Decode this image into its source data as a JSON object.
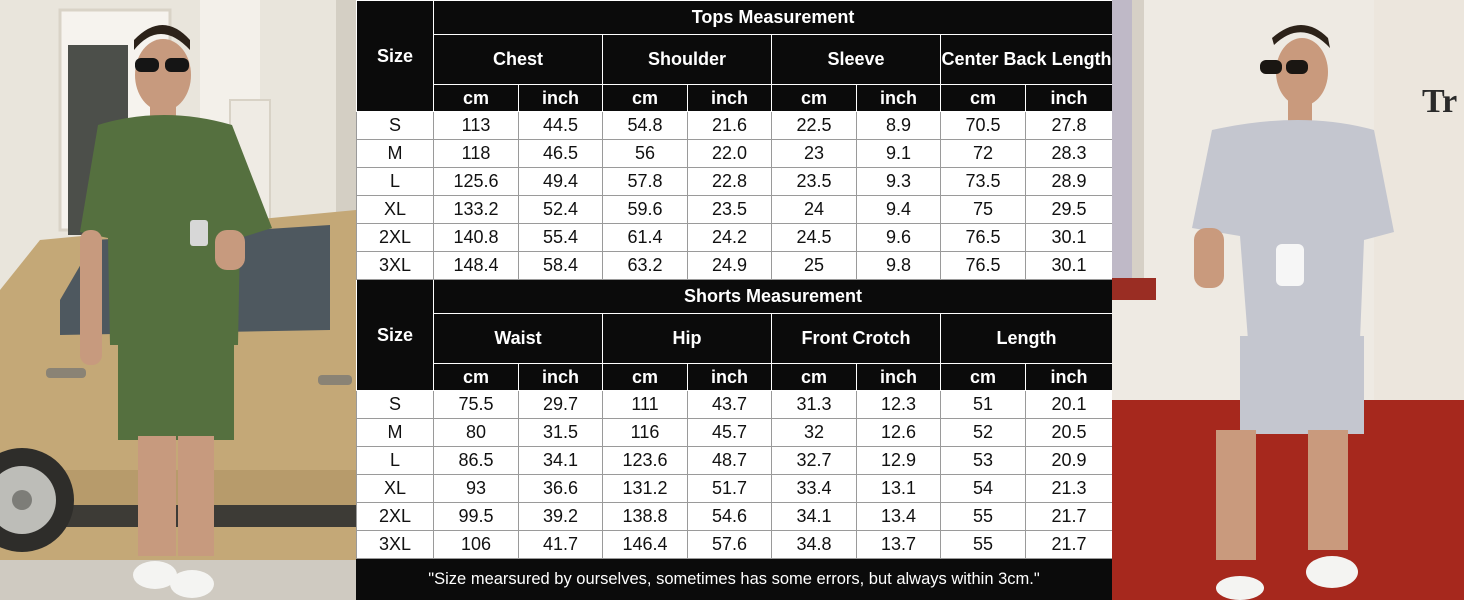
{
  "tops": {
    "title": "Tops Measurement",
    "size_label": "Size",
    "columns": [
      "Chest",
      "Shoulder",
      "Sleeve",
      "Center Back Length"
    ],
    "units": [
      "cm",
      "inch"
    ],
    "rows": [
      {
        "size": "S",
        "values": [
          "113",
          "44.5",
          "54.8",
          "21.6",
          "22.5",
          "8.9",
          "70.5",
          "27.8"
        ]
      },
      {
        "size": "M",
        "values": [
          "118",
          "46.5",
          "56",
          "22.0",
          "23",
          "9.1",
          "72",
          "28.3"
        ]
      },
      {
        "size": "L",
        "values": [
          "125.6",
          "49.4",
          "57.8",
          "22.8",
          "23.5",
          "9.3",
          "73.5",
          "28.9"
        ]
      },
      {
        "size": "XL",
        "values": [
          "133.2",
          "52.4",
          "59.6",
          "23.5",
          "24",
          "9.4",
          "75",
          "29.5"
        ]
      },
      {
        "size": "2XL",
        "values": [
          "140.8",
          "55.4",
          "61.4",
          "24.2",
          "24.5",
          "9.6",
          "76.5",
          "30.1"
        ]
      },
      {
        "size": "3XL",
        "values": [
          "148.4",
          "58.4",
          "63.2",
          "24.9",
          "25",
          "9.8",
          "76.5",
          "30.1"
        ]
      }
    ]
  },
  "shorts": {
    "title": "Shorts Measurement",
    "size_label": "Size",
    "columns": [
      "Waist",
      "Hip",
      "Front Crotch",
      "Length"
    ],
    "units": [
      "cm",
      "inch"
    ],
    "rows": [
      {
        "size": "S",
        "values": [
          "75.5",
          "29.7",
          "111",
          "43.7",
          "31.3",
          "12.3",
          "51",
          "20.1"
        ]
      },
      {
        "size": "M",
        "values": [
          "80",
          "31.5",
          "116",
          "45.7",
          "32",
          "12.6",
          "52",
          "20.5"
        ]
      },
      {
        "size": "L",
        "values": [
          "86.5",
          "34.1",
          "123.6",
          "48.7",
          "32.7",
          "12.9",
          "53",
          "20.9"
        ]
      },
      {
        "size": "XL",
        "values": [
          "93",
          "36.6",
          "131.2",
          "51.7",
          "33.4",
          "13.1",
          "54",
          "21.3"
        ]
      },
      {
        "size": "2XL",
        "values": [
          "99.5",
          "39.2",
          "138.8",
          "54.6",
          "34.1",
          "13.4",
          "55",
          "21.7"
        ]
      },
      {
        "size": "3XL",
        "values": [
          "106",
          "41.7",
          "146.4",
          "57.6",
          "34.8",
          "13.7",
          "55",
          "21.7"
        ]
      }
    ]
  },
  "note": "\"Size mearsured by ourselves, sometimes has some errors, but always within 3cm.\"",
  "photos": {
    "left": {
      "outfit_color": "#55703f",
      "background_color": "#ebe7df"
    },
    "right": {
      "outfit_color": "#c4c6cf",
      "background_color": "#f1ede6",
      "wall_color": "#a6281d"
    },
    "sign_text": "Tr"
  }
}
